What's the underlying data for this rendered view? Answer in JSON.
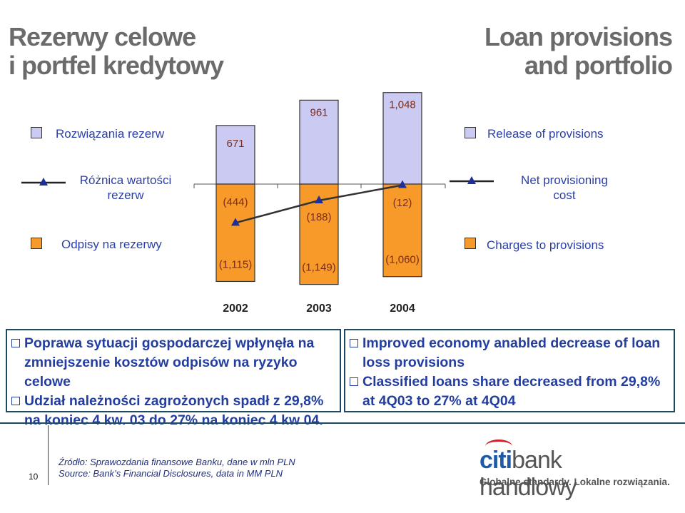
{
  "titles": {
    "pl_line1": "Rezerwy celowe",
    "pl_line2": "i portfel kredytowy",
    "en_line1": "Loan provisions",
    "en_line2": "and portfolio"
  },
  "legend": {
    "release_pl": "Rozwiązania rezerw",
    "release_en": "Release of provisions",
    "net_pl_1": "Różnica wartości",
    "net_pl_2": "rezerw",
    "net_en_1": "Net provisioning",
    "net_en_2": "cost",
    "charges_pl": "Odpisy na rezerwy",
    "charges_en": "Charges to provisions"
  },
  "colors": {
    "release": "#cbcaf2",
    "charges": "#f79a2a",
    "line": "#333333",
    "text": "#2a3fa8",
    "label_text": "#7a2d1a"
  },
  "chart_data": {
    "type": "bar",
    "categories": [
      "2002",
      "2003",
      "2004"
    ],
    "series": [
      {
        "name": "Release of provisions",
        "values": [
          671,
          961,
          1048
        ],
        "labels": [
          "671",
          "961",
          "1,048"
        ]
      },
      {
        "name": "Charges to provisions",
        "values": [
          -1115,
          -1149,
          -1060
        ],
        "labels": [
          "(1,115)",
          "(1,149)",
          "(1,060)"
        ]
      },
      {
        "name": "Net provisioning cost",
        "values": [
          -444,
          -188,
          -12
        ],
        "labels": [
          "(444)",
          "(188)",
          "(12)"
        ]
      }
    ],
    "stacked": true,
    "legend_position": "left-right"
  },
  "box_pl": {
    "item1": "Poprawa sytuacji gospodarczej wpłynęła na zmniejszenie kosztów odpisów na ryzyko celowe",
    "item2": "Udział należności zagrożonych spadł z 29,8% na koniec 4 kw. 03 do 27% na koniec 4 kw 04."
  },
  "box_en": {
    "item1": "Improved economy anabled decrease of loan loss provisions",
    "item2": "Classified loans share decreased from 29,8% at 4Q03 to 27% at 4Q04"
  },
  "footer": {
    "page_number": "10",
    "source_pl": "Źródło: Sprawozdania finansowe Banku, dane w mln PLN",
    "source_en": "Source: Bank’s Financial Disclosures, data in MM PLN"
  },
  "logo": {
    "citi": "citi",
    "rest": "bank handlowy",
    "tagline": "Globalne standardy. Lokalne rozwiązania."
  }
}
